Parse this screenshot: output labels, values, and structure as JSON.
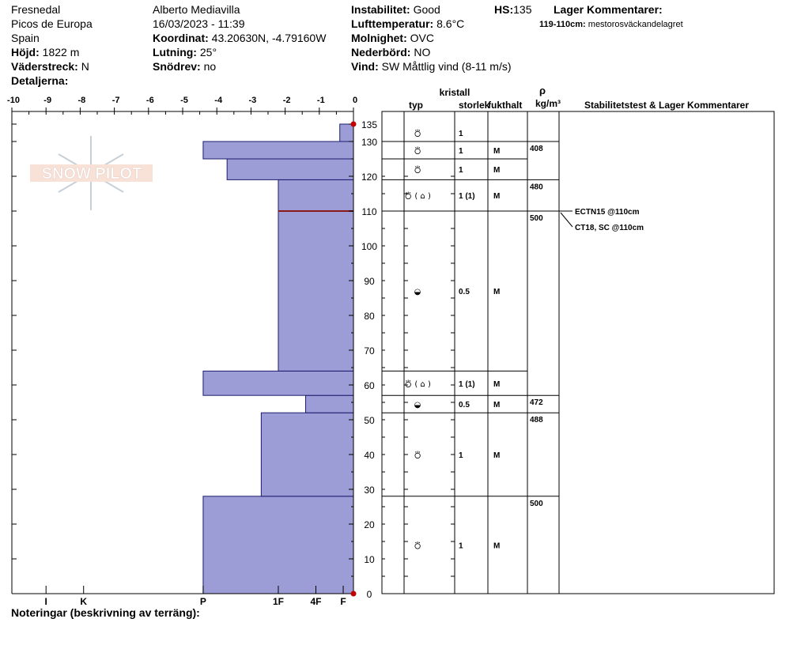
{
  "header": {
    "location": "Fresnedal",
    "region": "Picos de Europa",
    "country": "Spain",
    "elevation_label": "Höjd:",
    "elevation": "1822 m",
    "aspect_label": "Väderstreck:",
    "aspect": "N",
    "details_label": "Detaljerna:",
    "observer": "Alberto Mediavilla",
    "datetime": "16/03/2023 - 11:39",
    "coord_label": "Koordinat:",
    "coord": "43.20630N, -4.79160W",
    "slope_label": "Lutning:",
    "slope": "25°",
    "drift_label": "Snödrev:",
    "drift": "no",
    "instability_label": "Instabilitet:",
    "instability": "Good",
    "airtemp_label": "Lufttemperatur:",
    "airtemp": "8.6°C",
    "cloud_label": "Molnighet:",
    "cloud": "OVC",
    "precip_label": "Nederbörd:",
    "precip": "NO",
    "wind_label": "Vind:",
    "wind": "SW  Måttlig vind (8-11 m/s)",
    "hs_label": "HS:",
    "hs": "135",
    "layer_comments_label": "Lager Kommentarer:",
    "layer_comment_range": "119-110cm:",
    "layer_comment_text": "mestorosväckandelagret"
  },
  "footer": {
    "notes_label": "Noteringar (beskrivning av terräng):"
  },
  "logo": {
    "text": "SNOW PILOT"
  },
  "colors": {
    "bar_fill": "#9c9cd6",
    "weak_layer": "#8b1a1a",
    "marker": "#c00000"
  },
  "chart_data": {
    "type": "bar",
    "orientation": "horizontal",
    "y_axis": {
      "label": "",
      "min": 0,
      "max": 135,
      "ticks": [
        0,
        10,
        20,
        30,
        40,
        50,
        60,
        70,
        80,
        90,
        100,
        110,
        120,
        130,
        135
      ]
    },
    "x_axis_top": {
      "min": -10,
      "max": 0,
      "ticks": [
        "-10",
        "-9",
        "-8",
        "-7",
        "-6",
        "-5",
        "-4",
        "-3",
        "-2",
        "-1",
        "0"
      ]
    },
    "x_axis_bottom": {
      "ticks": [
        {
          "label": "I",
          "x": -9
        },
        {
          "label": "K",
          "x": -7.9
        },
        {
          "label": "P",
          "x": -4.4
        },
        {
          "label": "1F",
          "x": -2.2
        },
        {
          "label": "4F",
          "x": -1.1
        },
        {
          "label": "F",
          "x": -0.3
        }
      ]
    },
    "hardness_profile": [
      {
        "bottom": 0,
        "top": 28,
        "value": -4.4
      },
      {
        "bottom": 28,
        "top": 52,
        "value": -2.7
      },
      {
        "bottom": 52,
        "top": 57,
        "value": -1.4
      },
      {
        "bottom": 57,
        "top": 64,
        "value": -4.4
      },
      {
        "bottom": 64,
        "top": 119,
        "value": -2.2
      },
      {
        "bottom": 119,
        "top": 125,
        "value": -3.7
      },
      {
        "bottom": 125,
        "top": 130,
        "value": -4.4
      },
      {
        "bottom": 130,
        "top": 135,
        "value": -0.4
      }
    ],
    "weak_layer_height": 110
  },
  "table": {
    "headers": {
      "crystal": "kristall",
      "type": "typ",
      "size": "storlek",
      "moisture": "fukthalt",
      "rho": "ρ",
      "density_unit": "kg/m³",
      "stability": "Stabilitetstest & Lager Kommentarer"
    },
    "layers": [
      {
        "top": 135,
        "bottom": 130,
        "type": "⛣",
        "size": "1",
        "moist": "",
        "density": ""
      },
      {
        "top": 130,
        "bottom": 125,
        "type": "⛣",
        "size": "1",
        "moist": "M",
        "density": "408"
      },
      {
        "top": 125,
        "bottom": 119,
        "type": "⛣",
        "size": "1",
        "moist": "M",
        "density": ""
      },
      {
        "top": 119,
        "bottom": 110,
        "type": "⛣ ( ⌂ )",
        "size": "1 (1)",
        "moist": "M",
        "density": "480"
      },
      {
        "top": 110,
        "bottom": 64,
        "type": "◒",
        "size": "0.5",
        "moist": "M",
        "density": "500"
      },
      {
        "top": 64,
        "bottom": 57,
        "type": "⛣ ( ⌂ )",
        "size": "1 (1)",
        "moist": "M",
        "density": ""
      },
      {
        "top": 57,
        "bottom": 52,
        "type": "◒",
        "size": "0.5",
        "moist": "M",
        "density": "472"
      },
      {
        "top": 52,
        "bottom": 28,
        "type": "⛣",
        "size": "1",
        "moist": "M",
        "density": "488"
      },
      {
        "top": 28,
        "bottom": 0,
        "type": "⛣",
        "size": "1",
        "moist": "M",
        "density": "500"
      }
    ],
    "tests": [
      "ECTN15 @110cm",
      "CT18, SC @110cm"
    ]
  }
}
